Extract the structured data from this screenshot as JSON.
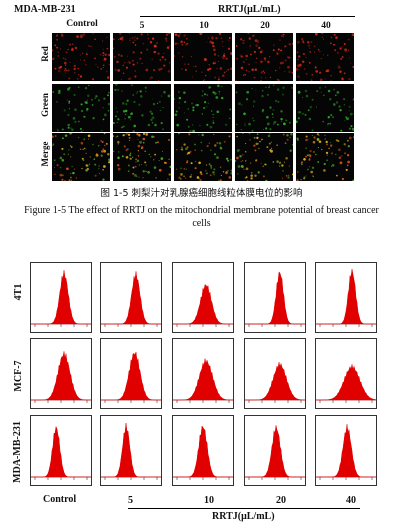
{
  "top_panel": {
    "cell_line": "MDA-MB-231",
    "control_label": "Control",
    "treatment_label": "RRTJ(μL/mL)",
    "doses": [
      "5",
      "10",
      "20",
      "40"
    ],
    "rows": [
      "Red",
      "Green",
      "Merge"
    ]
  },
  "caption": {
    "zh": "图 1-5 刺梨汁对乳腺癌细胞线粒体膜电位的影响",
    "en_line1": "Figure 1-5 The effect of RRTJ on the mitochondrial membrane potential of breast cancer",
    "en_line2": "cells"
  },
  "bottom_panel": {
    "rows": [
      "4T1",
      "MCF-7",
      "MDA-MB-231"
    ],
    "control_label": "Control",
    "doses": [
      "5",
      "10",
      "20",
      "40"
    ],
    "treatment_label": "RRTJ(μL/mL)",
    "hist_color": "#e00000"
  }
}
